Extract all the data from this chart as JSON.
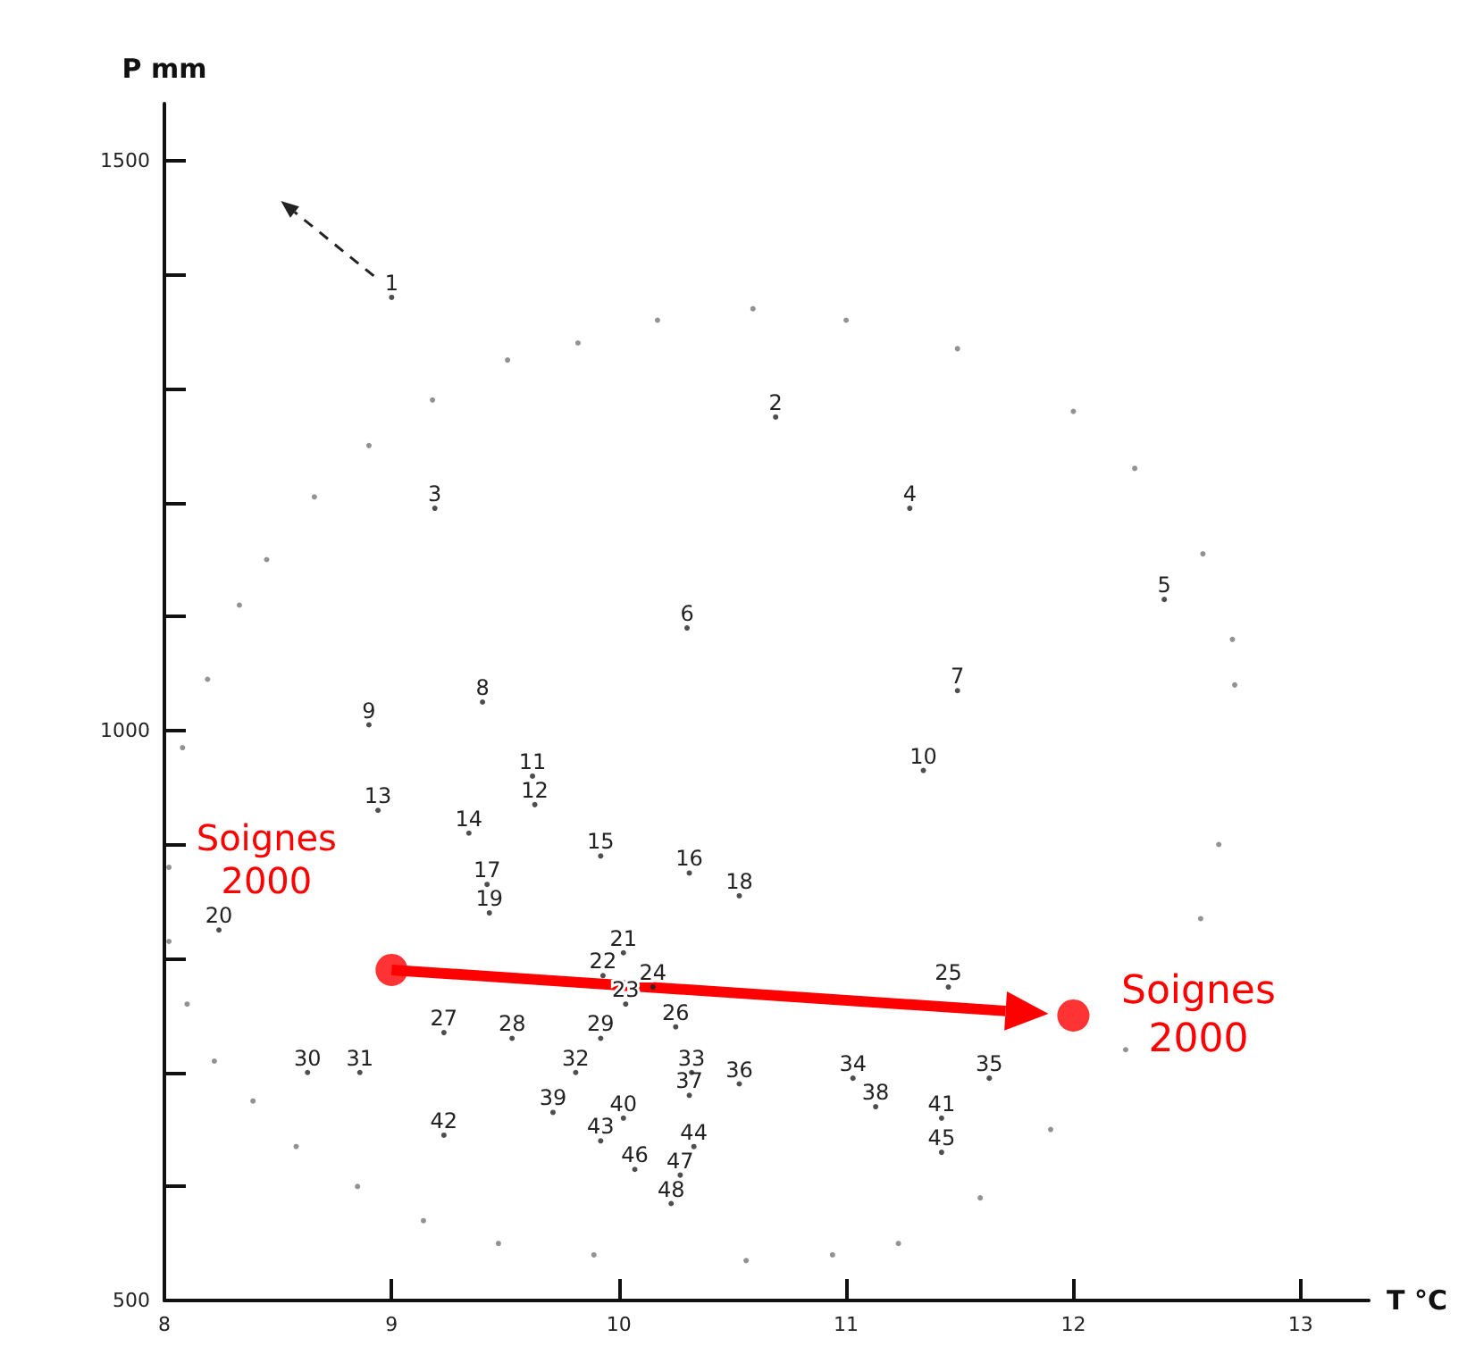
{
  "chart_data": {
    "type": "scatter",
    "xlabel": "T °C",
    "ylabel": "P mm",
    "xlim": [
      8,
      13.3
    ],
    "ylim": [
      500,
      1550
    ],
    "xticks": [
      8,
      9,
      10,
      11,
      12,
      13
    ],
    "yticks": [
      500,
      {
        "value": 600,
        "label": null
      },
      {
        "value": 700,
        "label": null
      },
      {
        "value": 800,
        "label": null
      },
      {
        "value": 900,
        "label": null
      },
      1000,
      {
        "value": 1100,
        "label": null
      },
      {
        "value": 1200,
        "label": null
      },
      {
        "value": 1300,
        "label": null
      },
      {
        "value": 1400,
        "label": null
      },
      1500
    ],
    "grid": false,
    "series": [
      {
        "marker": "circle",
        "color": "#222222",
        "x": [
          9.0,
          10.69,
          9.19,
          11.28,
          12.4,
          10.3,
          11.49,
          9.4,
          8.9,
          11.34,
          9.62,
          9.63,
          8.94,
          9.34,
          9.92,
          10.31,
          9.42,
          10.53,
          9.43,
          8.24,
          10.02,
          9.93,
          10.03,
          10.15,
          11.45,
          10.25,
          9.23,
          9.53,
          9.92,
          8.63,
          8.86,
          9.81,
          10.32,
          11.03,
          11.63,
          10.53,
          10.31,
          11.13,
          9.71,
          10.02,
          11.42,
          9.23,
          9.92,
          10.33,
          11.42,
          10.07,
          10.27,
          10.23
        ],
        "values": [
          1380,
          1275,
          1195,
          1195,
          1115,
          1090,
          1035,
          1025,
          1005,
          965,
          960,
          935,
          930,
          910,
          890,
          875,
          865,
          855,
          840,
          825,
          805,
          785,
          760,
          775,
          775,
          740,
          735,
          730,
          730,
          700,
          700,
          700,
          700,
          695,
          695,
          690,
          680,
          670,
          665,
          660,
          660,
          645,
          640,
          635,
          630,
          615,
          610,
          585
        ]
      },
      {
        "marker": "circle",
        "color": "#ff0000",
        "x": [
          9.0,
          12.0
        ],
        "values": [
          790,
          750
        ]
      },
      {
        "marker": "circle",
        "color": "#777777",
        "x": [
          10.59,
          11.0,
          11.49,
          12.0,
          12.27,
          12.57,
          12.7,
          12.71,
          12.64,
          12.56,
          12.23,
          11.9,
          11.59,
          11.23,
          10.94,
          10.56,
          9.89,
          9.47,
          9.14,
          8.85,
          8.58,
          8.39,
          8.22,
          8.1,
          8.02,
          8.02,
          8.08,
          8.19,
          8.33,
          8.45,
          8.66,
          8.9,
          9.18,
          9.51,
          9.82,
          10.17
        ],
        "values": [
          1370,
          1360,
          1335,
          1280,
          1230,
          1155,
          1080,
          1040,
          900,
          835,
          720,
          650,
          590,
          550,
          540,
          535,
          540,
          550,
          570,
          600,
          635,
          675,
          710,
          760,
          815,
          880,
          985,
          1045,
          1110,
          1150,
          1205,
          1250,
          1290,
          1325,
          1340,
          1360
        ]
      }
    ],
    "annotations": [
      {
        "text": "Soignes 2000",
        "x": 9.0,
        "y": 790
      },
      {
        "text": "Soignes 2000",
        "x": 12.0,
        "y": 750
      },
      {
        "text": "1",
        "x": 9.0,
        "y": 1380
      },
      {
        "text": "2",
        "x": 10.69,
        "y": 1275
      },
      {
        "text": "3",
        "x": 9.19,
        "y": 1195
      },
      {
        "text": "4",
        "x": 11.28,
        "y": 1195
      },
      {
        "text": "5",
        "x": 12.4,
        "y": 1115
      },
      {
        "text": "6",
        "x": 10.3,
        "y": 1090
      },
      {
        "text": "7",
        "x": 11.49,
        "y": 1035
      },
      {
        "text": "8",
        "x": 9.4,
        "y": 1025
      },
      {
        "text": "9",
        "x": 8.9,
        "y": 1005
      },
      {
        "text": "10",
        "x": 11.34,
        "y": 965
      },
      {
        "text": "11",
        "x": 9.62,
        "y": 960
      },
      {
        "text": "12",
        "x": 9.63,
        "y": 935
      },
      {
        "text": "13",
        "x": 8.94,
        "y": 930
      },
      {
        "text": "14",
        "x": 9.34,
        "y": 910
      },
      {
        "text": "15",
        "x": 9.92,
        "y": 890
      },
      {
        "text": "16",
        "x": 10.31,
        "y": 875
      },
      {
        "text": "17",
        "x": 9.42,
        "y": 865
      },
      {
        "text": "18",
        "x": 10.53,
        "y": 855
      },
      {
        "text": "19",
        "x": 9.43,
        "y": 840
      },
      {
        "text": "20",
        "x": 8.24,
        "y": 825
      },
      {
        "text": "21",
        "x": 10.02,
        "y": 805
      },
      {
        "text": "22",
        "x": 9.93,
        "y": 785
      },
      {
        "text": "23",
        "x": 10.03,
        "y": 760
      },
      {
        "text": "24",
        "x": 10.15,
        "y": 775
      },
      {
        "text": "25",
        "x": 11.45,
        "y": 775
      },
      {
        "text": "26",
        "x": 10.25,
        "y": 740
      },
      {
        "text": "27",
        "x": 9.23,
        "y": 735
      },
      {
        "text": "28",
        "x": 9.53,
        "y": 730
      },
      {
        "text": "29",
        "x": 9.92,
        "y": 730
      },
      {
        "text": "30",
        "x": 8.63,
        "y": 700
      },
      {
        "text": "31",
        "x": 8.86,
        "y": 700
      },
      {
        "text": "32",
        "x": 9.81,
        "y": 700
      },
      {
        "text": "33",
        "x": 10.32,
        "y": 700
      },
      {
        "text": "34",
        "x": 11.03,
        "y": 695
      },
      {
        "text": "35",
        "x": 11.63,
        "y": 695
      },
      {
        "text": "36",
        "x": 10.53,
        "y": 690
      },
      {
        "text": "37",
        "x": 10.31,
        "y": 680
      },
      {
        "text": "38",
        "x": 11.13,
        "y": 670
      },
      {
        "text": "39",
        "x": 9.71,
        "y": 665
      },
      {
        "text": "40",
        "x": 10.02,
        "y": 660
      },
      {
        "text": "41",
        "x": 11.42,
        "y": 660
      },
      {
        "text": "42",
        "x": 9.23,
        "y": 645
      },
      {
        "text": "43",
        "x": 9.92,
        "y": 640
      },
      {
        "text": "44",
        "x": 10.33,
        "y": 635
      },
      {
        "text": "45",
        "x": 11.42,
        "y": 630
      },
      {
        "text": "46",
        "x": 10.07,
        "y": 615
      },
      {
        "text": "47",
        "x": 10.27,
        "y": 610
      },
      {
        "text": "48",
        "x": 10.23,
        "y": 585
      }
    ]
  }
}
